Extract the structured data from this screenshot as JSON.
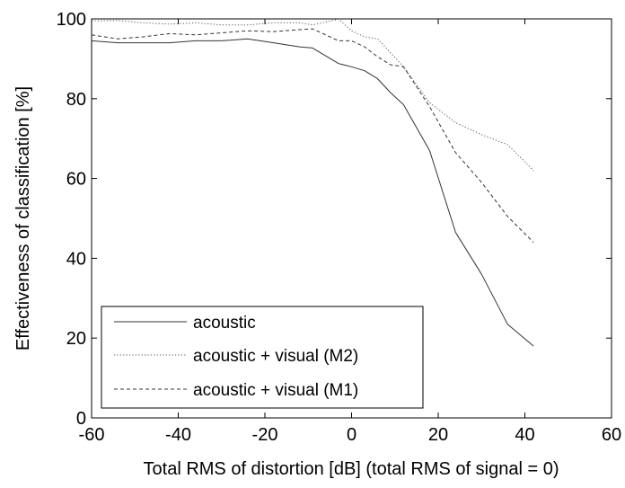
{
  "chart_data": {
    "type": "line",
    "title": "",
    "xlabel": "Total RMS of distortion [dB] (total RMS of signal = 0)",
    "ylabel": "Effectiveness of classification [%]",
    "xlim": [
      -60,
      60
    ],
    "ylim": [
      0,
      100
    ],
    "xticks": [
      -60,
      -40,
      -20,
      0,
      20,
      40,
      60
    ],
    "yticks": [
      0,
      20,
      40,
      60,
      80,
      100
    ],
    "grid": false,
    "legend_position": "bottom-left",
    "series": [
      {
        "name": "acoustic",
        "style": "solid",
        "color": "#333333",
        "x": [
          -60,
          -54,
          -48,
          -42,
          -36,
          -30,
          -24,
          -18,
          -12,
          -9,
          -3,
          0,
          3,
          6,
          9,
          12,
          18,
          24,
          30,
          36,
          42
        ],
        "y": [
          94.5,
          94,
          94,
          94,
          94.5,
          94.5,
          95,
          94,
          93,
          92.7,
          88.8,
          88,
          87,
          85,
          81.5,
          78.5,
          67,
          46.5,
          36,
          23.5,
          18
        ]
      },
      {
        "name": "acoustic + visual (M2)",
        "style": "dotted",
        "color": "#555555",
        "x": [
          -60,
          -54,
          -48,
          -42,
          -36,
          -30,
          -24,
          -18,
          -12,
          -9,
          -3,
          0,
          3,
          6,
          9,
          12,
          18,
          24,
          30,
          36,
          42
        ],
        "y": [
          99.5,
          99.6,
          99,
          98.7,
          99,
          98.5,
          98.5,
          99,
          99,
          98.5,
          99.9,
          97,
          95.5,
          95,
          91.5,
          88,
          79,
          74,
          71,
          68.5,
          62
        ]
      },
      {
        "name": "acoustic + visual (M1)",
        "style": "dashed",
        "color": "#333333",
        "x": [
          -60,
          -54,
          -48,
          -42,
          -36,
          -30,
          -24,
          -18,
          -12,
          -9,
          -3,
          0,
          3,
          6,
          9,
          12,
          18,
          24,
          30,
          36,
          42
        ],
        "y": [
          96,
          95,
          95.5,
          96.3,
          96,
          96.5,
          97,
          96.8,
          97.3,
          97.5,
          94.5,
          94.5,
          93,
          90.5,
          88.5,
          88,
          78,
          66.5,
          59,
          50.5,
          44
        ]
      }
    ]
  }
}
